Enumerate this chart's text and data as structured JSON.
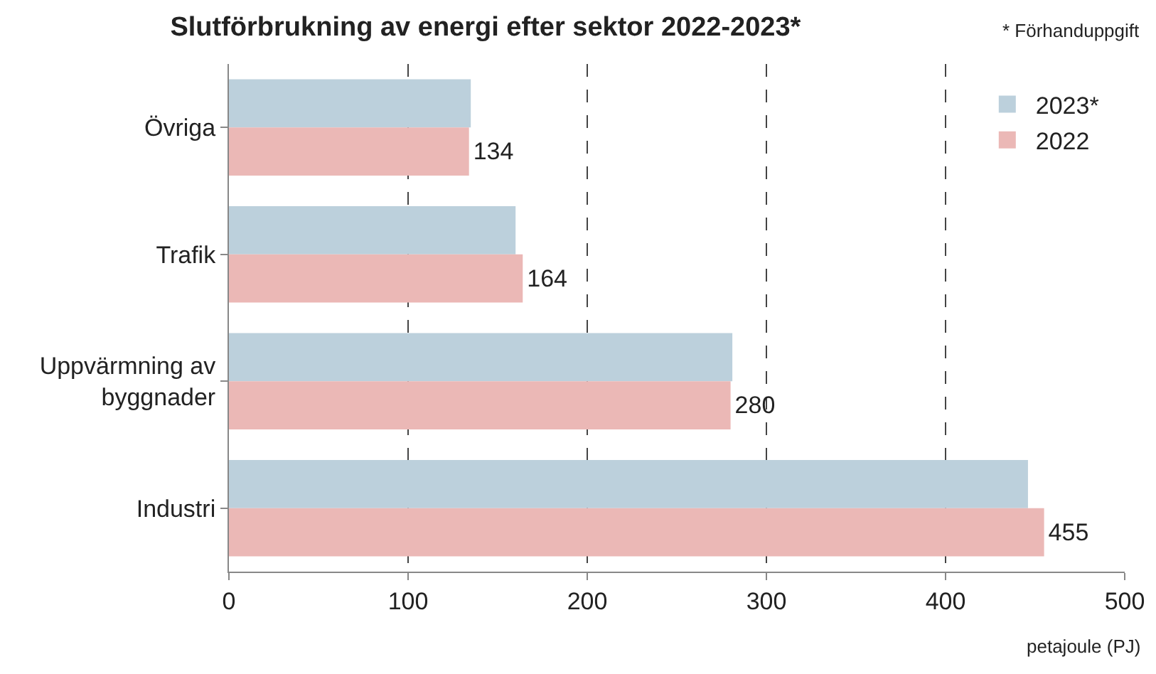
{
  "chart_data": {
    "type": "bar",
    "orientation": "horizontal",
    "title": "Slutförbrukning av energi efter sektor 2022-2023*",
    "xlabel": "petajoule (PJ)",
    "annotations": [
      "* Förhanduppgift"
    ],
    "categories": [
      "Övriga",
      "Trafik",
      "Uppvärmning av byggnader",
      "Industri"
    ],
    "series": [
      {
        "name": "2023*",
        "color": "#bcd0dc",
        "values": [
          135,
          160,
          281,
          446
        ]
      },
      {
        "name": "2022",
        "color": "#ebb8b6",
        "values": [
          134,
          164,
          280,
          455
        ],
        "value_labels": [
          "134",
          "164",
          "280",
          "455"
        ]
      }
    ],
    "xlim": [
      0,
      500
    ],
    "xticks": [
      0,
      100,
      200,
      300,
      400,
      500
    ],
    "grid": "x",
    "legend": "top right"
  }
}
